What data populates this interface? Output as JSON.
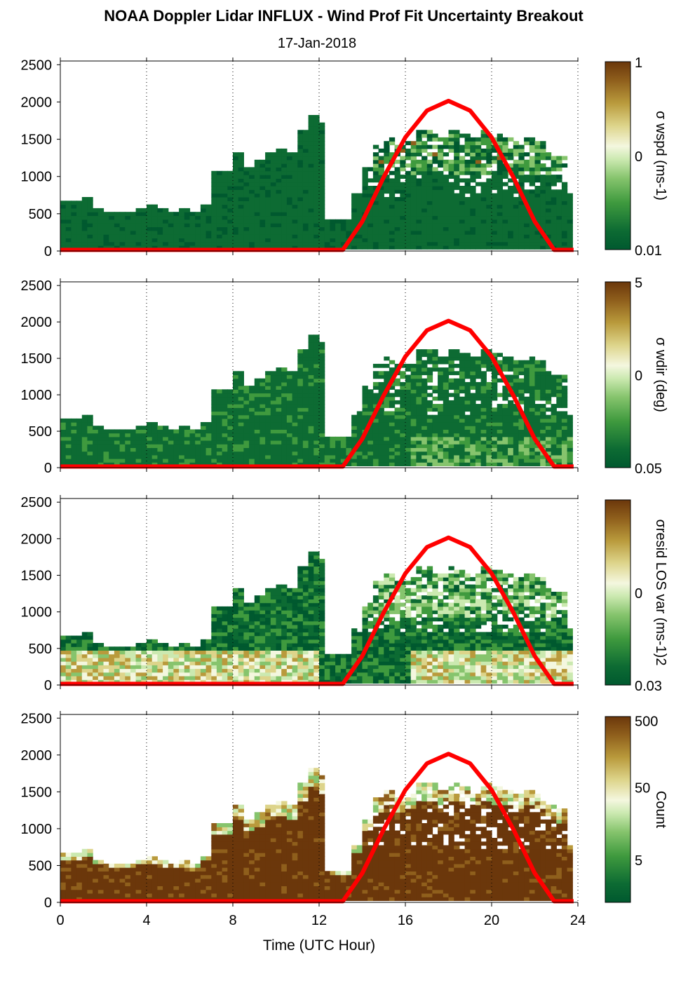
{
  "title": "NOAA Doppler Lidar INFLUX - Wind Prof Fit Uncertainty Breakout",
  "subtitle": "17-Jan-2018",
  "xlabel": "Time (UTC Hour)",
  "colors": {
    "sun_curve": "#ff0000",
    "colormap": [
      "#00592f",
      "#0d6b33",
      "#3f9a3e",
      "#86c46d",
      "#cbe9b0",
      "#f4f7df",
      "#ddd48a",
      "#b99a3c",
      "#8f5f1c",
      "#6b370b"
    ]
  },
  "chart_data": [
    {
      "type": "heatmap",
      "x_unit": "UTC hour",
      "y_unit": "m",
      "xlim": [
        0,
        24
      ],
      "ylim": [
        0,
        2550
      ],
      "xticks": [
        "0",
        "4",
        "8",
        "12",
        "16",
        "20",
        "24"
      ],
      "yticks": [
        "0",
        "500",
        "1000",
        "1500",
        "2000",
        "2500"
      ],
      "colorbar": {
        "label": "σ wspd (ms-1)",
        "ticks": [
          "1",
          "0",
          "0.01"
        ],
        "scale": "log"
      },
      "variable": "wspd",
      "sun_curve": {
        "x": [
          0,
          13.1,
          14,
          15,
          16,
          17,
          18,
          19,
          20,
          21,
          22,
          22.9,
          23.8
        ],
        "y": [
          0,
          0,
          380,
          980,
          1510,
          1870,
          2000,
          1870,
          1510,
          980,
          380,
          0,
          0
        ]
      }
    },
    {
      "type": "heatmap",
      "x_unit": "UTC hour",
      "y_unit": "m",
      "xlim": [
        0,
        24
      ],
      "ylim": [
        0,
        2550
      ],
      "xticks": [
        "0",
        "4",
        "8",
        "12",
        "16",
        "20",
        "24"
      ],
      "yticks": [
        "0",
        "500",
        "1000",
        "1500",
        "2000",
        "2500"
      ],
      "colorbar": {
        "label": "σ wdir (deg)",
        "ticks": [
          "5",
          "0",
          "0.05"
        ],
        "scale": "log"
      },
      "variable": "wdir",
      "sun_curve": {
        "x": [
          0,
          13.1,
          14,
          15,
          16,
          17,
          18,
          19,
          20,
          21,
          22,
          22.9,
          23.8
        ],
        "y": [
          0,
          0,
          380,
          980,
          1510,
          1870,
          2000,
          1870,
          1510,
          980,
          380,
          0,
          0
        ]
      }
    },
    {
      "type": "heatmap",
      "x_unit": "UTC hour",
      "y_unit": "m",
      "xlim": [
        0,
        24
      ],
      "ylim": [
        0,
        2550
      ],
      "xticks": [
        "0",
        "4",
        "8",
        "12",
        "16",
        "20",
        "24"
      ],
      "yticks": [
        "0",
        "500",
        "1000",
        "1500",
        "2000",
        "2500"
      ],
      "colorbar": {
        "label": "σresid LOS var (ms-1)2",
        "ticks": [
          "0",
          "0.03"
        ],
        "scale": "log"
      },
      "variable": "resid",
      "sun_curve": {
        "x": [
          0,
          13.1,
          14,
          15,
          16,
          17,
          18,
          19,
          20,
          21,
          22,
          22.9,
          23.8
        ],
        "y": [
          0,
          0,
          380,
          980,
          1510,
          1870,
          2000,
          1870,
          1510,
          980,
          380,
          0,
          0
        ]
      }
    },
    {
      "type": "heatmap",
      "x_unit": "UTC hour",
      "y_unit": "m",
      "xlim": [
        0,
        24
      ],
      "ylim": [
        0,
        2550
      ],
      "xticks": [
        "0",
        "4",
        "8",
        "12",
        "16",
        "20",
        "24"
      ],
      "yticks": [
        "0",
        "500",
        "1000",
        "1500",
        "2000",
        "2500"
      ],
      "colorbar": {
        "label": "Count",
        "ticks": [
          "500",
          "50",
          "5"
        ],
        "scale": "log"
      },
      "variable": "count",
      "sun_curve": {
        "x": [
          0,
          13.1,
          14,
          15,
          16,
          17,
          18,
          19,
          20,
          21,
          22,
          22.9,
          23.8
        ],
        "y": [
          0,
          0,
          380,
          980,
          1510,
          1870,
          2000,
          1870,
          1510,
          980,
          380,
          0,
          0
        ]
      }
    }
  ],
  "data_extent": {
    "hours": [
      0,
      0.5,
      1,
      1.5,
      2,
      2.5,
      3,
      3.5,
      4,
      4.5,
      5,
      5.5,
      6,
      6.5,
      7,
      7.5,
      8,
      8.5,
      9,
      9.5,
      10,
      10.5,
      11,
      11.5,
      12,
      12.5,
      13,
      13.5,
      14,
      14.5,
      15,
      15.5,
      16,
      16.5,
      17,
      17.5,
      18,
      18.5,
      19,
      19.5,
      20,
      20.5,
      21,
      21.5,
      22,
      22.5,
      23,
      23.5
    ],
    "top_m": [
      650,
      650,
      700,
      560,
      520,
      520,
      510,
      560,
      590,
      550,
      520,
      530,
      480,
      620,
      1050,
      1050,
      1300,
      1100,
      1200,
      1280,
      1350,
      1300,
      1600,
      1800,
      1700,
      420,
      420,
      750,
      1100,
      1400,
      1500,
      1400,
      1450,
      1600,
      1600,
      1500,
      1600,
      1550,
      1500,
      1600,
      1550,
      1500,
      1450,
      1500,
      1450,
      1300,
      1250,
      750
    ]
  }
}
